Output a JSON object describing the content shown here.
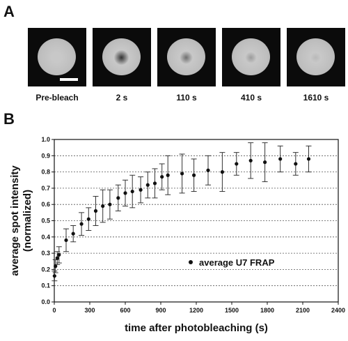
{
  "panel_a": {
    "letter": "A",
    "images": [
      {
        "label": "Pre-bleach",
        "spot": 0.0
      },
      {
        "label": "2 s",
        "spot": 1.0
      },
      {
        "label": "110 s",
        "spot": 0.6
      },
      {
        "label": "410 s",
        "spot": 0.3
      },
      {
        "label": "1610 s",
        "spot": 0.1
      }
    ]
  },
  "panel_b": {
    "letter": "B"
  },
  "chart_data": {
    "type": "scatter",
    "xlabel": "time after photobleaching (s)",
    "ylabel_line1": "average spot intensity",
    "ylabel_line2": "(normalized)",
    "xlim": [
      0,
      2400
    ],
    "ylim": [
      0,
      1.0
    ],
    "x_ticks": [
      0,
      300,
      600,
      900,
      1200,
      1500,
      1800,
      2100,
      2400
    ],
    "y_ticks": [
      0.0,
      0.1,
      0.2,
      0.3,
      0.4,
      0.5,
      0.6,
      0.7,
      0.8,
      0.9,
      1.0
    ],
    "grid": "horizontal dashed",
    "legend": {
      "label": "average U7 FRAP",
      "placement": "bottom-right"
    },
    "series": [
      {
        "name": "average U7 FRAP",
        "points": [
          {
            "x": 2,
            "y": 0.16,
            "err": 0.03
          },
          {
            "x": 10,
            "y": 0.22,
            "err": 0.04
          },
          {
            "x": 25,
            "y": 0.27,
            "err": 0.04
          },
          {
            "x": 40,
            "y": 0.29,
            "err": 0.05
          },
          {
            "x": 100,
            "y": 0.38,
            "err": 0.07
          },
          {
            "x": 160,
            "y": 0.42,
            "err": 0.05
          },
          {
            "x": 230,
            "y": 0.48,
            "err": 0.07
          },
          {
            "x": 290,
            "y": 0.51,
            "err": 0.07
          },
          {
            "x": 350,
            "y": 0.56,
            "err": 0.09
          },
          {
            "x": 410,
            "y": 0.59,
            "err": 0.1
          },
          {
            "x": 470,
            "y": 0.6,
            "err": 0.09
          },
          {
            "x": 540,
            "y": 0.64,
            "err": 0.08
          },
          {
            "x": 600,
            "y": 0.67,
            "err": 0.08
          },
          {
            "x": 660,
            "y": 0.68,
            "err": 0.1
          },
          {
            "x": 730,
            "y": 0.69,
            "err": 0.08
          },
          {
            "x": 790,
            "y": 0.72,
            "err": 0.08
          },
          {
            "x": 850,
            "y": 0.73,
            "err": 0.09
          },
          {
            "x": 910,
            "y": 0.77,
            "err": 0.08
          },
          {
            "x": 960,
            "y": 0.78,
            "err": 0.12
          },
          {
            "x": 1080,
            "y": 0.79,
            "err": 0.12
          },
          {
            "x": 1180,
            "y": 0.78,
            "err": 0.1
          },
          {
            "x": 1300,
            "y": 0.81,
            "err": 0.09
          },
          {
            "x": 1420,
            "y": 0.8,
            "err": 0.12
          },
          {
            "x": 1540,
            "y": 0.85,
            "err": 0.07
          },
          {
            "x": 1660,
            "y": 0.87,
            "err": 0.11
          },
          {
            "x": 1780,
            "y": 0.86,
            "err": 0.12
          },
          {
            "x": 1910,
            "y": 0.88,
            "err": 0.08
          },
          {
            "x": 2040,
            "y": 0.85,
            "err": 0.07
          },
          {
            "x": 2150,
            "y": 0.88,
            "err": 0.08
          }
        ]
      }
    ]
  }
}
